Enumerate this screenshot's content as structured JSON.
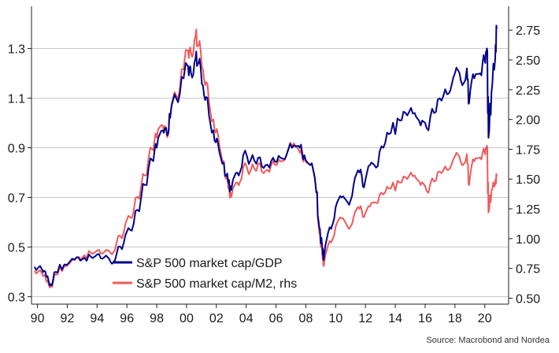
{
  "chart_data": {
    "type": "line",
    "title": "",
    "xlabel": "",
    "ylabel": "",
    "xlim": [
      1989.6,
      2021.6
    ],
    "ylim_left": [
      0.27,
      1.47
    ],
    "ylim_right": [
      0.45,
      2.95
    ],
    "grid": true,
    "x_tick_labels": [
      "90",
      "92",
      "94",
      "96",
      "98",
      "00",
      "02",
      "04",
      "06",
      "08",
      "10",
      "12",
      "14",
      "16",
      "18",
      "20"
    ],
    "left_tick_labels": [
      "0.3",
      "0.5",
      "0.7",
      "0.9",
      "1.1",
      "1.3"
    ],
    "right_tick_labels": [
      "0.50",
      "0.75",
      "1.00",
      "1.25",
      "1.50",
      "1.75",
      "2.00",
      "2.25",
      "2.50",
      "2.75"
    ],
    "legend_position": "bottom-center",
    "colors": {
      "gdp": "#00008b",
      "m2": "#f05a5a"
    },
    "series": [
      {
        "name": "S&P 500 market cap/GDP",
        "axis": "left",
        "x": [
          1989.8,
          1990.3,
          1990.6,
          1990.9,
          1991.2,
          1991.8,
          1992.5,
          1993.0,
          1993.6,
          1994.0,
          1994.5,
          1994.9,
          1995.3,
          1995.8,
          1996.2,
          1996.7,
          1997.2,
          1997.7,
          1998.0,
          1998.4,
          1998.7,
          1998.9,
          1999.3,
          1999.8,
          2000.1,
          2000.3,
          2000.6,
          2000.8,
          2001.1,
          2001.4,
          2001.8,
          2002.1,
          2002.5,
          2002.8,
          2003.0,
          2003.4,
          2003.8,
          2004.3,
          2004.8,
          2005.3,
          2005.8,
          2006.3,
          2006.7,
          2007.2,
          2007.6,
          2007.9,
          2008.3,
          2008.7,
          2008.9,
          2009.1,
          2009.2,
          2009.6,
          2010.0,
          2010.4,
          2010.8,
          2011.2,
          2011.6,
          2011.9,
          2012.3,
          2012.7,
          2013.2,
          2013.7,
          2014.3,
          2014.8,
          2015.3,
          2015.7,
          2016.1,
          2016.6,
          2017.1,
          2017.6,
          2018.0,
          2018.4,
          2018.8,
          2018.95,
          2019.3,
          2019.7,
          2020.0,
          2020.15,
          2020.25,
          2020.45,
          2020.7,
          2020.8
        ],
        "values": [
          0.42,
          0.41,
          0.38,
          0.35,
          0.4,
          0.43,
          0.45,
          0.45,
          0.46,
          0.47,
          0.46,
          0.44,
          0.47,
          0.52,
          0.57,
          0.65,
          0.75,
          0.85,
          0.9,
          0.97,
          0.95,
          1.02,
          1.1,
          1.18,
          1.23,
          1.2,
          1.26,
          1.24,
          1.15,
          1.1,
          0.97,
          0.92,
          0.84,
          0.76,
          0.73,
          0.8,
          0.87,
          0.85,
          0.86,
          0.83,
          0.86,
          0.86,
          0.87,
          0.91,
          0.9,
          0.87,
          0.83,
          0.72,
          0.58,
          0.5,
          0.45,
          0.58,
          0.66,
          0.7,
          0.68,
          0.75,
          0.8,
          0.74,
          0.83,
          0.82,
          0.9,
          0.96,
          1.01,
          1.03,
          1.04,
          0.99,
          0.98,
          1.04,
          1.09,
          1.12,
          1.2,
          1.17,
          1.22,
          1.08,
          1.18,
          1.2,
          1.25,
          1.3,
          0.94,
          1.12,
          1.26,
          1.38
        ]
      },
      {
        "name": "S&P 500 market cap/M2, rhs",
        "axis": "right",
        "x": [
          1989.8,
          1990.3,
          1990.6,
          1990.9,
          1991.2,
          1991.8,
          1992.5,
          1993.0,
          1993.6,
          1994.0,
          1994.5,
          1994.9,
          1995.3,
          1995.8,
          1996.2,
          1996.7,
          1997.2,
          1997.7,
          1998.0,
          1998.4,
          1998.7,
          1998.9,
          1999.3,
          1999.8,
          2000.1,
          2000.3,
          2000.6,
          2000.8,
          2001.1,
          2001.4,
          2001.8,
          2002.1,
          2002.5,
          2002.8,
          2003.0,
          2003.4,
          2003.8,
          2004.3,
          2004.8,
          2005.3,
          2005.8,
          2006.3,
          2006.7,
          2007.2,
          2007.6,
          2007.9,
          2008.3,
          2008.7,
          2008.9,
          2009.1,
          2009.2,
          2009.6,
          2010.0,
          2010.4,
          2010.8,
          2011.2,
          2011.6,
          2011.9,
          2012.3,
          2012.7,
          2013.2,
          2013.7,
          2014.3,
          2014.8,
          2015.3,
          2015.7,
          2016.1,
          2016.6,
          2017.1,
          2017.6,
          2018.0,
          2018.4,
          2018.8,
          2018.95,
          2019.3,
          2019.7,
          2020.0,
          2020.15,
          2020.25,
          2020.45,
          2020.7,
          2020.8
        ],
        "values": [
          0.73,
          0.71,
          0.64,
          0.6,
          0.7,
          0.77,
          0.82,
          0.84,
          0.88,
          0.9,
          0.89,
          0.88,
          0.96,
          1.06,
          1.18,
          1.35,
          1.53,
          1.75,
          1.85,
          1.95,
          1.85,
          2.02,
          2.2,
          2.42,
          2.58,
          2.56,
          2.7,
          2.62,
          2.42,
          2.3,
          2.0,
          1.88,
          1.65,
          1.42,
          1.35,
          1.47,
          1.6,
          1.57,
          1.63,
          1.57,
          1.65,
          1.65,
          1.7,
          1.8,
          1.72,
          1.68,
          1.62,
          1.4,
          1.05,
          0.9,
          0.77,
          0.98,
          1.1,
          1.17,
          1.1,
          1.18,
          1.25,
          1.18,
          1.27,
          1.3,
          1.37,
          1.42,
          1.47,
          1.5,
          1.53,
          1.45,
          1.4,
          1.48,
          1.55,
          1.58,
          1.69,
          1.64,
          1.71,
          1.45,
          1.65,
          1.68,
          1.72,
          1.78,
          1.22,
          1.4,
          1.46,
          1.52
        ]
      }
    ],
    "source": "Source: Macrobond and Nordea"
  }
}
